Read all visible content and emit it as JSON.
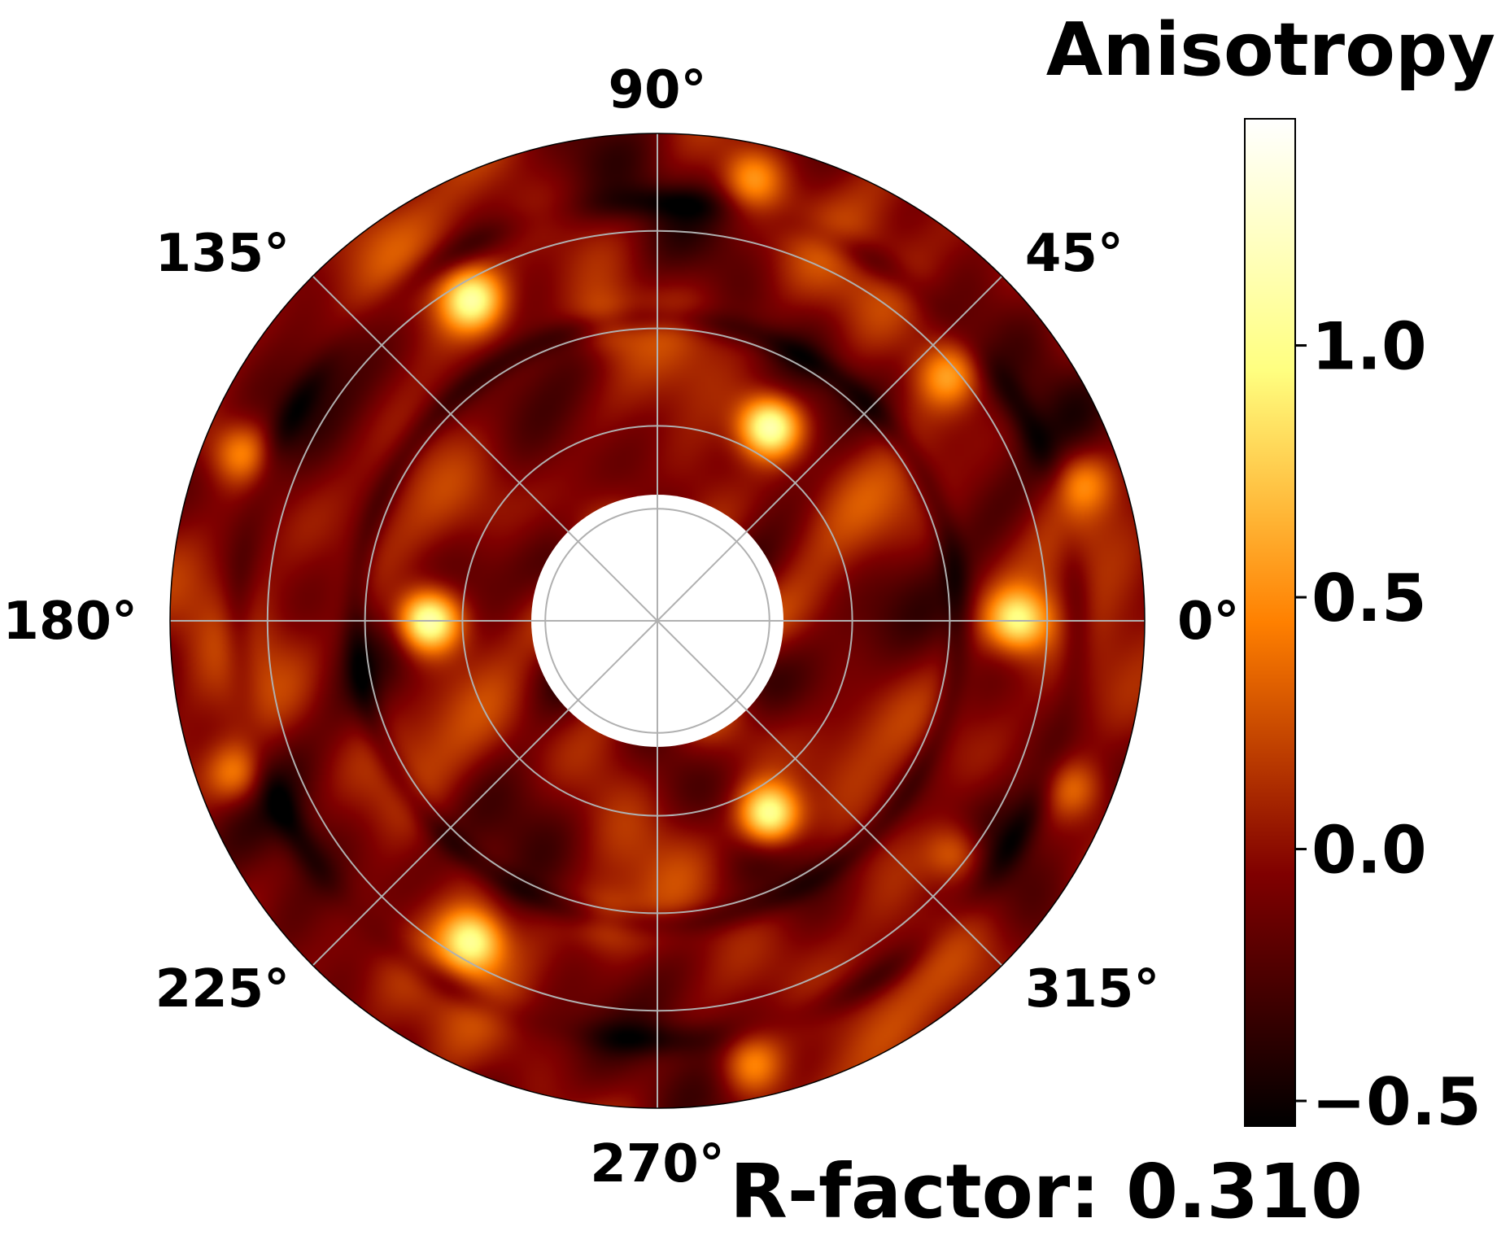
{
  "chart_data": {
    "type": "heatmap",
    "projection": "polar",
    "colormap": "afmhot",
    "colorbar": {
      "title": "Anisotropy",
      "vmin": -0.55,
      "vmax": 1.45,
      "ticks": [
        {
          "value": -0.5,
          "label": "−0.5"
        },
        {
          "value": 0.0,
          "label": "0.0"
        },
        {
          "value": 0.5,
          "label": "0.5"
        },
        {
          "value": 1.0,
          "label": "1.0"
        }
      ]
    },
    "angular_ticks": [
      "0°",
      "45°",
      "90°",
      "135°",
      "180°",
      "225°",
      "270°",
      "315°"
    ],
    "grid": true,
    "annotation": "R-factor: 0.310",
    "hot_spots": [
      {
        "angle_deg": 180,
        "radius_frac": 0.47,
        "value": 1.35
      },
      {
        "angle_deg": 60,
        "radius_frac": 0.46,
        "value": 1.3
      },
      {
        "angle_deg": 300,
        "radius_frac": 0.46,
        "value": 1.3
      },
      {
        "angle_deg": 0,
        "radius_frac": 0.74,
        "value": 0.95
      },
      {
        "angle_deg": 120,
        "radius_frac": 0.76,
        "value": 1.0
      },
      {
        "angle_deg": 240,
        "radius_frac": 0.76,
        "value": 1.0
      },
      {
        "angle_deg": 78,
        "radius_frac": 0.93,
        "value": 0.6
      },
      {
        "angle_deg": 40,
        "radius_frac": 0.78,
        "value": 0.55
      },
      {
        "angle_deg": 18,
        "radius_frac": 0.92,
        "value": 0.45
      },
      {
        "angle_deg": 158,
        "radius_frac": 0.92,
        "value": 0.55
      },
      {
        "angle_deg": 200,
        "radius_frac": 0.92,
        "value": 0.55
      },
      {
        "angle_deg": 282,
        "radius_frac": 0.93,
        "value": 0.6
      },
      {
        "angle_deg": 322,
        "radius_frac": 0.78,
        "value": 0.55
      },
      {
        "angle_deg": 338,
        "radius_frac": 0.92,
        "value": 0.45
      },
      {
        "angle_deg": 100,
        "radius_frac": 0.62,
        "value": 0.35
      },
      {
        "angle_deg": 260,
        "radius_frac": 0.62,
        "value": 0.35
      }
    ]
  }
}
